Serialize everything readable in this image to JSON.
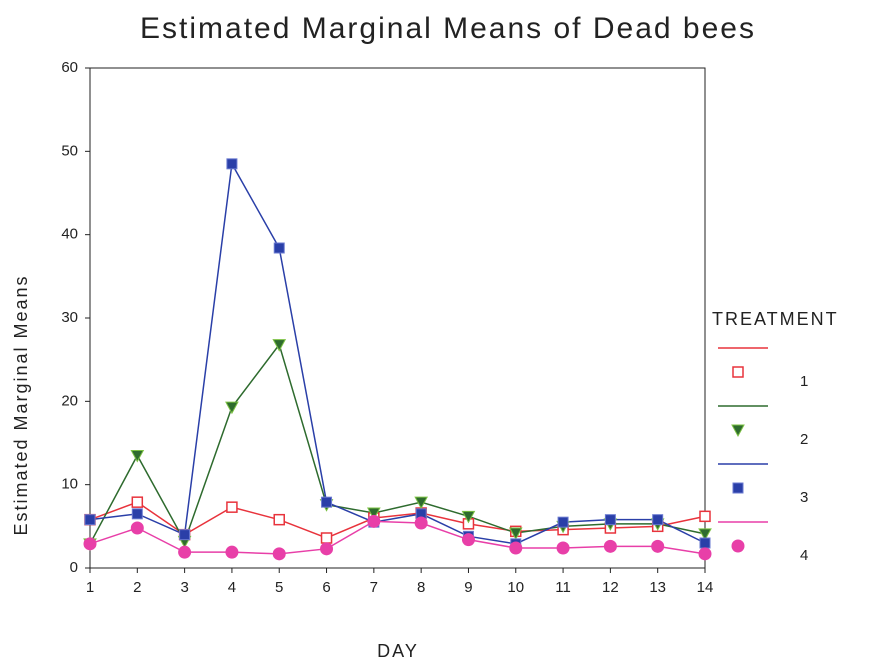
{
  "chart_data": {
    "type": "line",
    "title": "Estimated Marginal Means of Dead bees",
    "x_label": "DAY",
    "y_label": "Estimated Marginal Means",
    "legend_title": "TREATMENT",
    "legend": "right",
    "x": [
      1,
      2,
      3,
      4,
      5,
      6,
      7,
      8,
      9,
      10,
      11,
      12,
      13,
      14
    ],
    "xlim": [
      1,
      14
    ],
    "xticks": [
      1,
      2,
      3,
      4,
      5,
      6,
      7,
      8,
      9,
      10,
      11,
      12,
      13,
      14
    ],
    "ylim": [
      0,
      60
    ],
    "yticks": [
      0,
      10,
      20,
      30,
      40,
      50,
      60
    ],
    "series": [
      {
        "name": "1",
        "color": "#e8333c",
        "marker": "open-square",
        "values": [
          5.8,
          7.9,
          4,
          7.3,
          5.8,
          3.6,
          6,
          6.6,
          5.3,
          4.4,
          4.6,
          4.8,
          5,
          6.2
        ]
      },
      {
        "name": "2",
        "color": "#2e6b2e",
        "marker": "triangle-down",
        "values": [
          2.9,
          13.5,
          3.2,
          19.3,
          26.8,
          7.6,
          6.6,
          7.9,
          6.2,
          4.2,
          5,
          5.3,
          5.3,
          4.1
        ]
      },
      {
        "name": "3",
        "color": "#2a3fa8",
        "marker": "filled-square",
        "values": [
          5.8,
          6.5,
          4,
          48.5,
          38.4,
          7.9,
          5.5,
          6.5,
          3.8,
          2.9,
          5.5,
          5.8,
          5.8,
          3
        ]
      },
      {
        "name": "4",
        "color": "#e83fa8",
        "marker": "circle",
        "values": [
          2.9,
          4.8,
          1.9,
          1.9,
          1.7,
          2.3,
          5.6,
          5.4,
          3.4,
          2.4,
          2.4,
          2.6,
          2.6,
          1.7
        ]
      }
    ]
  }
}
